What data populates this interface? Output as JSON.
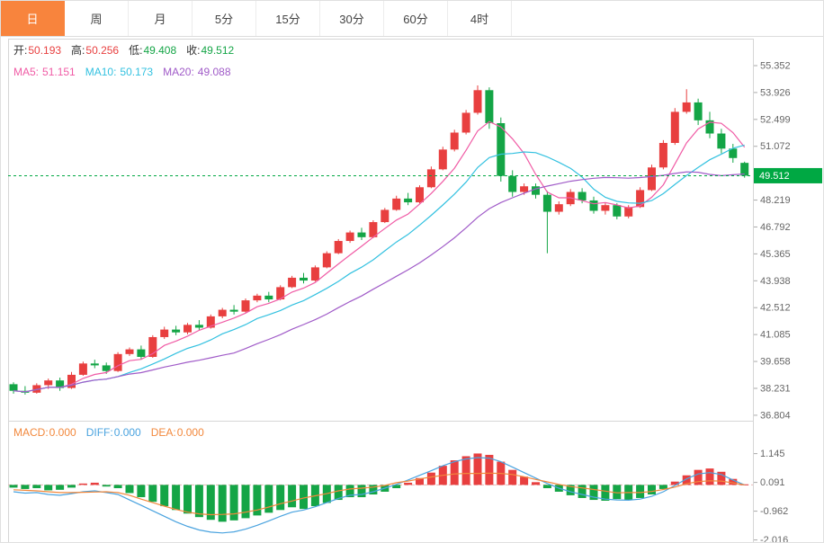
{
  "tabs": [
    {
      "key": "day",
      "label": "日",
      "active": true
    },
    {
      "key": "week",
      "label": "周",
      "active": false
    },
    {
      "key": "month",
      "label": "月",
      "active": false
    },
    {
      "key": "5min",
      "label": "5分",
      "active": false
    },
    {
      "key": "15min",
      "label": "15分",
      "active": false
    },
    {
      "key": "30min",
      "label": "30分",
      "active": false
    },
    {
      "key": "60min",
      "label": "60分",
      "active": false
    },
    {
      "key": "4hour",
      "label": "4时",
      "active": false
    }
  ],
  "ohlc": {
    "open_label": "开:",
    "open_value": "50.193",
    "high_label": "高:",
    "high_value": "50.256",
    "low_label": "低:",
    "low_value": "49.408",
    "close_label": "收:",
    "close_value": "49.512"
  },
  "ma": {
    "ma5_label": "MA5:",
    "ma5_value": "51.151",
    "ma10_label": "MA10:",
    "ma10_value": "50.173",
    "ma20_label": "MA20:",
    "ma20_value": "49.088"
  },
  "macd_readout": {
    "macd_label": "MACD:",
    "macd_value": "0.000",
    "diff_label": "DIFF:",
    "diff_value": "0.000",
    "dea_label": "DEA:",
    "dea_value": "0.000"
  },
  "chart_data": {
    "type": "candlestick",
    "timeframe_selected": "日",
    "ylim": [
      36.804,
      55.352
    ],
    "price_axis_ticks": [
      55.352,
      53.926,
      52.499,
      51.072,
      48.219,
      46.792,
      45.365,
      43.938,
      42.512,
      41.085,
      39.658,
      38.231,
      36.804
    ],
    "current_price": 49.512,
    "legend": [
      "MA5",
      "MA10",
      "MA20"
    ],
    "candles": [
      [
        38.45,
        38.55,
        37.95,
        38.1
      ],
      [
        38.1,
        38.35,
        37.9,
        38.0
      ],
      [
        38.0,
        38.5,
        37.95,
        38.4
      ],
      [
        38.4,
        38.75,
        38.2,
        38.65
      ],
      [
        38.65,
        38.8,
        38.1,
        38.25
      ],
      [
        38.25,
        39.1,
        38.2,
        38.95
      ],
      [
        38.95,
        39.65,
        38.9,
        39.55
      ],
      [
        39.55,
        39.75,
        39.3,
        39.45
      ],
      [
        39.45,
        39.6,
        39.0,
        39.15
      ],
      [
        39.15,
        40.15,
        39.1,
        40.05
      ],
      [
        40.05,
        40.4,
        39.95,
        40.3
      ],
      [
        40.3,
        40.5,
        39.75,
        39.9
      ],
      [
        39.9,
        41.05,
        39.85,
        40.95
      ],
      [
        40.95,
        41.5,
        40.85,
        41.35
      ],
      [
        41.35,
        41.55,
        41.05,
        41.2
      ],
      [
        41.2,
        41.7,
        41.1,
        41.6
      ],
      [
        41.6,
        41.85,
        41.3,
        41.45
      ],
      [
        41.45,
        42.15,
        41.4,
        42.05
      ],
      [
        42.05,
        42.5,
        41.95,
        42.4
      ],
      [
        42.4,
        42.65,
        42.15,
        42.3
      ],
      [
        42.3,
        43.0,
        42.25,
        42.9
      ],
      [
        42.9,
        43.25,
        42.8,
        43.15
      ],
      [
        43.15,
        43.35,
        42.8,
        42.95
      ],
      [
        42.95,
        43.7,
        42.9,
        43.6
      ],
      [
        43.6,
        44.2,
        43.55,
        44.1
      ],
      [
        44.1,
        44.35,
        43.8,
        43.95
      ],
      [
        43.95,
        44.75,
        43.9,
        44.65
      ],
      [
        44.65,
        45.5,
        44.6,
        45.4
      ],
      [
        45.4,
        46.15,
        45.35,
        46.05
      ],
      [
        46.05,
        46.6,
        45.95,
        46.5
      ],
      [
        46.5,
        46.75,
        46.1,
        46.25
      ],
      [
        46.25,
        47.15,
        46.2,
        47.05
      ],
      [
        47.05,
        47.8,
        47.0,
        47.7
      ],
      [
        47.7,
        48.45,
        47.65,
        48.3
      ],
      [
        48.3,
        48.6,
        47.95,
        48.1
      ],
      [
        48.1,
        49.0,
        48.05,
        48.9
      ],
      [
        48.9,
        50.0,
        48.85,
        49.85
      ],
      [
        49.85,
        51.05,
        49.8,
        50.9
      ],
      [
        50.9,
        51.95,
        50.8,
        51.8
      ],
      [
        51.8,
        53.0,
        51.7,
        52.85
      ],
      [
        52.85,
        54.3,
        52.75,
        54.05
      ],
      [
        54.05,
        54.2,
        52.0,
        52.3
      ],
      [
        52.3,
        52.6,
        49.2,
        49.5
      ],
      [
        49.5,
        49.8,
        48.4,
        48.65
      ],
      [
        48.65,
        49.1,
        48.5,
        48.95
      ],
      [
        48.95,
        49.1,
        48.3,
        48.5
      ],
      [
        48.5,
        48.7,
        45.4,
        47.6
      ],
      [
        47.6,
        48.15,
        47.45,
        48.0
      ],
      [
        48.0,
        48.8,
        47.9,
        48.65
      ],
      [
        48.65,
        48.85,
        48.05,
        48.2
      ],
      [
        48.2,
        48.4,
        47.5,
        47.65
      ],
      [
        47.65,
        48.1,
        47.45,
        47.95
      ],
      [
        47.95,
        48.05,
        47.2,
        47.35
      ],
      [
        47.35,
        47.95,
        47.25,
        47.85
      ],
      [
        47.85,
        48.9,
        47.8,
        48.75
      ],
      [
        48.75,
        50.1,
        48.7,
        49.95
      ],
      [
        49.95,
        51.4,
        49.85,
        51.25
      ],
      [
        51.25,
        53.1,
        51.15,
        52.9
      ],
      [
        52.9,
        54.1,
        52.8,
        53.4
      ],
      [
        53.4,
        53.6,
        52.2,
        52.45
      ],
      [
        52.45,
        52.9,
        51.5,
        51.75
      ],
      [
        51.75,
        52.0,
        50.7,
        50.95
      ],
      [
        50.95,
        51.2,
        50.2,
        50.45
      ],
      [
        50.193,
        50.256,
        49.408,
        49.512
      ]
    ],
    "macd": {
      "axis_ticks": [
        1.145,
        0.091,
        -0.962,
        -2.016
      ],
      "hist": [
        -0.1,
        -0.15,
        -0.12,
        -0.2,
        -0.18,
        -0.1,
        0.05,
        0.08,
        -0.06,
        -0.12,
        -0.3,
        -0.45,
        -0.62,
        -0.78,
        -0.92,
        -1.05,
        -1.18,
        -1.28,
        -1.35,
        -1.3,
        -1.22,
        -1.12,
        -1.02,
        -0.92,
        -0.82,
        -0.88,
        -0.78,
        -0.66,
        -0.55,
        -0.45,
        -0.45,
        -0.35,
        -0.25,
        -0.12,
        0.08,
        0.25,
        0.45,
        0.7,
        0.9,
        1.05,
        1.15,
        1.1,
        0.85,
        0.55,
        0.3,
        0.1,
        -0.12,
        -0.25,
        -0.38,
        -0.48,
        -0.55,
        -0.58,
        -0.52,
        -0.56,
        -0.48,
        -0.35,
        -0.15,
        0.12,
        0.35,
        0.55,
        0.6,
        0.48,
        0.22,
        0.02
      ],
      "diff": [
        -0.25,
        -0.3,
        -0.28,
        -0.35,
        -0.38,
        -0.32,
        -0.25,
        -0.22,
        -0.28,
        -0.35,
        -0.55,
        -0.75,
        -0.95,
        -1.15,
        -1.35,
        -1.52,
        -1.65,
        -1.73,
        -1.76,
        -1.72,
        -1.62,
        -1.48,
        -1.32,
        -1.15,
        -1.0,
        -0.92,
        -0.8,
        -0.65,
        -0.5,
        -0.38,
        -0.35,
        -0.25,
        -0.12,
        0.02,
        0.18,
        0.35,
        0.52,
        0.7,
        0.85,
        0.95,
        1.0,
        0.98,
        0.85,
        0.65,
        0.45,
        0.25,
        0.05,
        -0.12,
        -0.25,
        -0.35,
        -0.45,
        -0.52,
        -0.55,
        -0.56,
        -0.52,
        -0.42,
        -0.25,
        -0.02,
        0.22,
        0.4,
        0.45,
        0.38,
        0.18,
        0.0
      ],
      "dea": [
        -0.18,
        -0.2,
        -0.22,
        -0.25,
        -0.28,
        -0.28,
        -0.27,
        -0.26,
        -0.25,
        -0.28,
        -0.38,
        -0.52,
        -0.65,
        -0.78,
        -0.9,
        -1.0,
        -1.06,
        -1.09,
        -1.08,
        -1.06,
        -1.0,
        -0.92,
        -0.81,
        -0.69,
        -0.59,
        -0.48,
        -0.4,
        -0.32,
        -0.22,
        -0.15,
        -0.12,
        -0.08,
        -0.02,
        0.08,
        0.14,
        0.22,
        0.29,
        0.35,
        0.4,
        0.42,
        0.42,
        0.43,
        0.42,
        0.38,
        0.3,
        0.2,
        0.11,
        0.02,
        -0.06,
        -0.11,
        -0.17,
        -0.23,
        -0.29,
        -0.28,
        -0.28,
        -0.24,
        -0.17,
        -0.08,
        0.04,
        0.12,
        0.15,
        0.14,
        0.07,
        0.0
      ]
    },
    "colors": {
      "up": "#e83f3f",
      "down": "#14a546",
      "price_tag": "#00a843",
      "ma5": "#f05ba5",
      "ma10": "#33c1e0",
      "ma20": "#a05bc8",
      "diff": "#4aa3df",
      "dea": "#f2883c"
    }
  }
}
